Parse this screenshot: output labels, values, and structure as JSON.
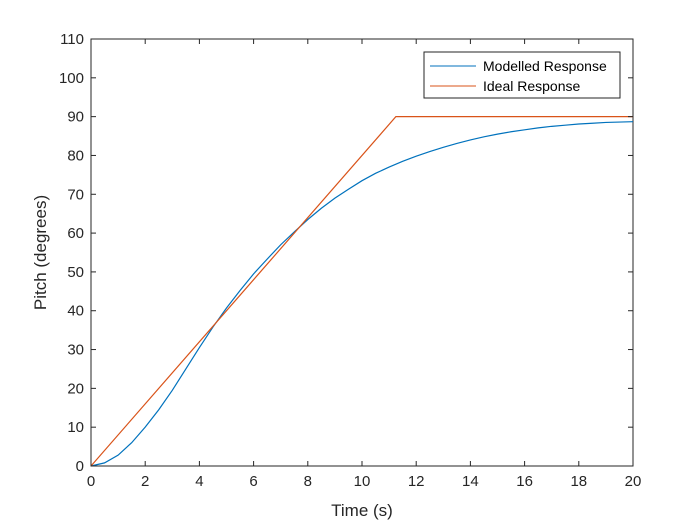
{
  "chart_data": {
    "type": "line",
    "xlabel": "Time (s)",
    "ylabel": "Pitch (degrees)",
    "xlim": [
      0,
      20
    ],
    "ylim": [
      0,
      110
    ],
    "xticks": [
      0,
      2,
      4,
      6,
      8,
      10,
      12,
      14,
      16,
      18,
      20
    ],
    "yticks": [
      0,
      10,
      20,
      30,
      40,
      50,
      60,
      70,
      80,
      90,
      100,
      110
    ],
    "grid": false,
    "legend_position": "top-right",
    "series": [
      {
        "name": "Modelled Response",
        "color": "#0072BD",
        "x": [
          0,
          0.5,
          1,
          1.5,
          2,
          2.5,
          3,
          3.5,
          4,
          4.5,
          5,
          5.5,
          6,
          6.5,
          7,
          7.5,
          8,
          8.5,
          9,
          9.5,
          10,
          10.5,
          11,
          11.5,
          12,
          12.5,
          13,
          13.5,
          14,
          14.5,
          15,
          15.5,
          16,
          16.5,
          17,
          17.5,
          18,
          18.5,
          19,
          19.5,
          20
        ],
        "y": [
          0,
          0.8,
          2.8,
          6,
          10,
          14.5,
          19.5,
          25,
          30.5,
          35.8,
          40.7,
          45.2,
          49.5,
          53.3,
          57,
          60.3,
          63.5,
          66.4,
          69,
          71.3,
          73.5,
          75.4,
          77,
          78.5,
          79.8,
          81,
          82.1,
          83.1,
          84,
          84.8,
          85.5,
          86.1,
          86.6,
          87.1,
          87.5,
          87.8,
          88.1,
          88.3,
          88.5,
          88.6,
          88.7
        ]
      },
      {
        "name": "Ideal Response",
        "color": "#D95319",
        "x": [
          0,
          11.25,
          20
        ],
        "y": [
          0,
          90,
          90
        ]
      }
    ]
  }
}
